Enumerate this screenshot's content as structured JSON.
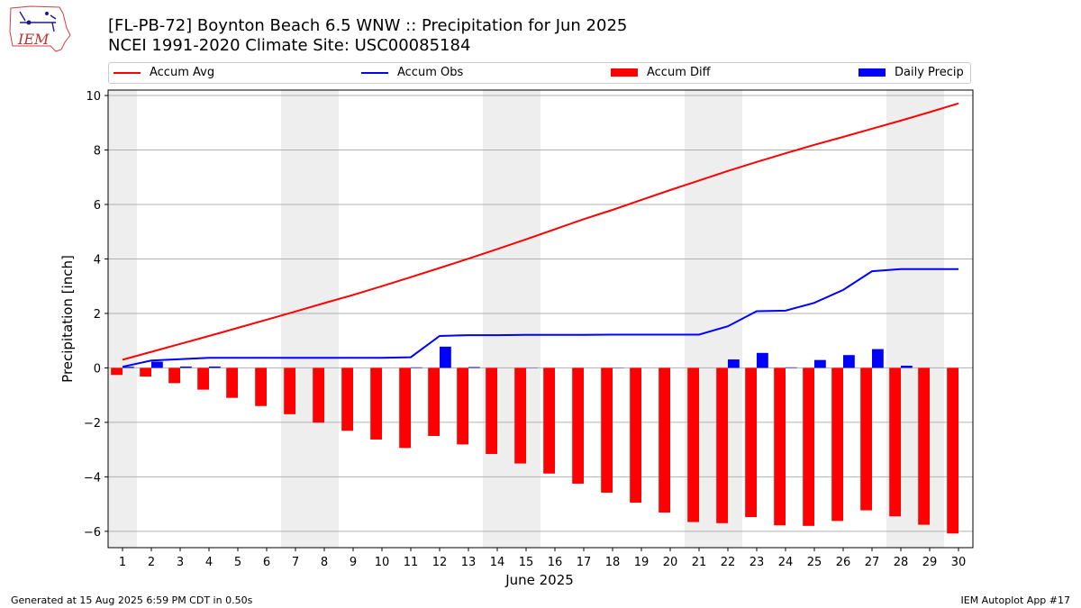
{
  "header": {
    "title_line1": "[FL-PB-72] Boynton Beach 6.5 WNW :: Precipitation for Jun 2025",
    "title_line2": "NCEI 1991-2020 Climate Site: USC00085184",
    "logo_text": "IEM"
  },
  "footer": {
    "generated": "Generated at 15 Aug 2025 6:59 PM CDT in 0.50s",
    "app": "IEM Autoplot App #17"
  },
  "colors": {
    "avg": "#ff0000",
    "obs": "#0000ff",
    "diff": "#ff0000",
    "daily": "#0000ff",
    "weekend_band": "#eeeeee",
    "grid": "#b0b0b0"
  },
  "chart_data": {
    "type": "bar",
    "xlabel": "June 2025",
    "ylabel": "Precipitation [inch]",
    "xlim": [
      0.5,
      30.5
    ],
    "ylim": [
      -6.6,
      10.2
    ],
    "yticks": [
      -6,
      -4,
      -2,
      0,
      2,
      4,
      6,
      8,
      10
    ],
    "x": [
      1,
      2,
      3,
      4,
      5,
      6,
      7,
      8,
      9,
      10,
      11,
      12,
      13,
      14,
      15,
      16,
      17,
      18,
      19,
      20,
      21,
      22,
      23,
      24,
      25,
      26,
      27,
      28,
      29,
      30
    ],
    "grid": "horizontal",
    "legend_placement": "top",
    "weekend_days": [
      1,
      7,
      8,
      14,
      15,
      21,
      22,
      28,
      29
    ],
    "series": [
      {
        "name": "Accum Avg",
        "kind": "line",
        "values": [
          0.3,
          0.59,
          0.88,
          1.17,
          1.47,
          1.77,
          2.07,
          2.38,
          2.68,
          3.0,
          3.33,
          3.67,
          4.01,
          4.36,
          4.72,
          5.09,
          5.46,
          5.8,
          6.17,
          6.53,
          6.88,
          7.23,
          7.56,
          7.88,
          8.19,
          8.48,
          8.78,
          9.08,
          9.39,
          9.71
        ]
      },
      {
        "name": "Accum Obs",
        "kind": "line",
        "values": [
          0.04,
          0.27,
          0.32,
          0.37,
          0.37,
          0.37,
          0.37,
          0.37,
          0.37,
          0.37,
          0.39,
          1.17,
          1.2,
          1.2,
          1.21,
          1.21,
          1.21,
          1.22,
          1.22,
          1.22,
          1.22,
          1.53,
          2.08,
          2.1,
          2.39,
          2.86,
          3.55,
          3.63,
          3.63,
          3.63
        ]
      },
      {
        "name": "Accum Diff",
        "kind": "bar",
        "values": [
          -0.26,
          -0.32,
          -0.56,
          -0.8,
          -1.1,
          -1.4,
          -1.7,
          -2.01,
          -2.31,
          -2.63,
          -2.94,
          -2.5,
          -2.81,
          -3.16,
          -3.51,
          -3.88,
          -4.25,
          -4.58,
          -4.95,
          -5.31,
          -5.66,
          -5.7,
          -5.48,
          -5.78,
          -5.8,
          -5.62,
          -5.23,
          -5.45,
          -5.76,
          -6.08
        ]
      },
      {
        "name": "Daily Precip",
        "kind": "bar",
        "values": [
          0.04,
          0.23,
          0.05,
          0.05,
          0,
          0,
          0,
          0,
          0,
          0,
          0.02,
          0.78,
          0.03,
          0,
          0.01,
          0,
          0,
          0.01,
          0,
          0,
          0,
          0.31,
          0.55,
          0.02,
          0.29,
          0.47,
          0.69,
          0.08,
          0,
          0
        ]
      }
    ]
  }
}
